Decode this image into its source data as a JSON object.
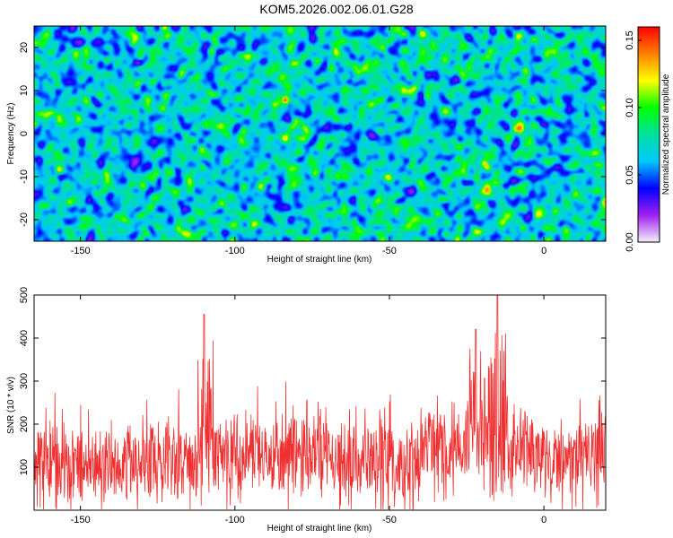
{
  "title": "KOM5.2026.002.06.01.G28",
  "chart_data": [
    {
      "type": "heatmap",
      "xlabel": "Height of straight line (km)",
      "ylabel": "Frequency (Hz)",
      "xlim": [
        -165,
        20
      ],
      "ylim": [
        -25,
        25
      ],
      "xticks": [
        -150,
        -100,
        -50,
        0
      ],
      "yticks": [
        -20,
        -10,
        0,
        10,
        20
      ],
      "colorbar": {
        "label": "Normalized spectral amplitude",
        "range": [
          0.0,
          0.16
        ],
        "ticks": [
          "0.00",
          "0.05",
          "0.10",
          "0.15"
        ],
        "colors": [
          "#f4f0f8",
          "#a020f0",
          "#0000ff",
          "#00c8ff",
          "#00e0a0",
          "#00ff00",
          "#ffff00",
          "#ff8000",
          "#ff0000"
        ]
      },
      "peak": {
        "x": -84,
        "y": 8,
        "value": 0.16
      }
    },
    {
      "type": "line",
      "xlabel": "Height of straight line (km)",
      "ylabel": "SNR (10 * v/v)",
      "xlim": [
        -165,
        20
      ],
      "ylim": [
        0,
        500
      ],
      "xticks": [
        -150,
        -100,
        -50,
        0
      ],
      "yticks": [
        100,
        200,
        300,
        400,
        500
      ],
      "color": "#f03030",
      "features": [
        {
          "x": -110,
          "y": 455
        },
        {
          "x": -15,
          "y": 500
        },
        {
          "x": -22,
          "y": 420
        }
      ]
    }
  ]
}
